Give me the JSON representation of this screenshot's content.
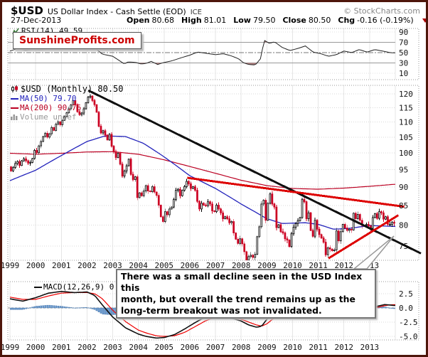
{
  "header": {
    "symbol": "$USD",
    "title": "US Dollar Index - Cash Settle (EOD)",
    "exchange": "ICE",
    "copyright": "© StockCharts.com",
    "date": "27-Dec-2013",
    "open_label": "Open",
    "open": "80.68",
    "high_label": "High",
    "high": "81.01",
    "low_label": "Low",
    "low": "79.50",
    "close_label": "Close",
    "close": "80.50",
    "chg_label": "Chg",
    "chg": "-0.16 (-0.19%)"
  },
  "watermark": "SunshineProfits.com",
  "legends": {
    "rsi": "RSI(14) 49.59",
    "usd": "$USD (Monthly) 80.50",
    "ma50": "MA(50) 79.70",
    "ma200": "MA(200) 90.76",
    "volume": "Volume undef",
    "macd": "MACD(12,26,9) 0.432",
    "macd_suffix": ","
  },
  "annotation": {
    "lines": [
      "There was a small decline seen in the USD Index this",
      "month, but overall the trend remains up as the",
      "long-term breakout was not invalidated."
    ]
  },
  "axes": {
    "price_ticks": [
      120,
      115,
      110,
      105,
      100,
      95,
      90,
      85,
      80,
      75
    ],
    "rsi_ticks": [
      90,
      70,
      50,
      30,
      10
    ],
    "macd_ticks": [
      {
        "label": "2.5",
        "value": 2.5
      },
      {
        "label": "0.0",
        "value": 0.0
      },
      {
        "label": "-2.5",
        "value": -2.5
      },
      {
        "label": "-5.0",
        "value": -5.0
      }
    ],
    "years": [
      "1999",
      "2000",
      "2001",
      "2002",
      "2003",
      "2004",
      "2005",
      "2006",
      "2007",
      "2008",
      "2009",
      "2010",
      "2011",
      "2012",
      "2013"
    ]
  },
  "colors": {
    "frame": "#4e160b",
    "grid": "#e6e6e6",
    "panel_border": "#999999",
    "candle_up_fill": "#ffffff",
    "candle_up_stroke": "#000000",
    "candle_down": "#cc0022",
    "ma50": "#2323bb",
    "ma200": "#bb0022",
    "trend_black": "#111111",
    "trend_red": "#dd0000",
    "rsi_line": "#222222",
    "rsi_fill": "#b08080",
    "macd_line": "#111111",
    "macd_signal": "#ee0000",
    "histogram": "#6b9bd2",
    "histogram_stroke": "#3c6ea5",
    "accent_red": "#cc0000"
  },
  "chart_data": {
    "type": "candlestick",
    "title": "$USD US Dollar Index - Cash Settle (EOD) ICE, Monthly, 1999-2013",
    "timeframe": "monthly",
    "x_range": [
      1999,
      2014
    ],
    "price_scale": "log",
    "price_ylim": [
      73,
      123
    ],
    "last_bar": {
      "date": "27-Dec-2013",
      "open": 80.68,
      "high": 81.01,
      "low": 79.5,
      "close": 80.5,
      "chg": -0.16,
      "chg_pct": -0.19
    },
    "monthly_closes": [
      94.6,
      95.6,
      96.8,
      97.4,
      96.2,
      97.6,
      98.2,
      97.6,
      96.9,
      97.1,
      98.3,
      100.8,
      100.1,
      102.2,
      103.6,
      105.2,
      106.3,
      105.0,
      106.1,
      108.2,
      107.2,
      109.3,
      110.1,
      109.1,
      110.6,
      111.9,
      113.2,
      114.6,
      116.0,
      117.6,
      116.1,
      113.6,
      112.6,
      113.1,
      114.6,
      116.8,
      118.8,
      119.2,
      117.6,
      116.1,
      113.4,
      108.6,
      106.4,
      107.1,
      105.7,
      104.1,
      105.9,
      102.1,
      100.4,
      98.6,
      99.9,
      96.6,
      93.1,
      94.6,
      96.1,
      98.1,
      93.6,
      92.1,
      92.9,
      87.1,
      88.4,
      87.6,
      88.9,
      90.4,
      88.9,
      88.7,
      90.1,
      88.6,
      87.7,
      85.1,
      82.1,
      80.9,
      83.4,
      82.6,
      84.1,
      84.6,
      86.6,
      89.1,
      89.4,
      87.6,
      89.1,
      90.1,
      91.6,
      90.9,
      89.6,
      90.1,
      89.1,
      86.1,
      84.1,
      85.6,
      85.1,
      85.0,
      86.0,
      85.4,
      83.6,
      83.4,
      85.1,
      84.1,
      83.1,
      81.6,
      82.1,
      81.6,
      80.6,
      80.9,
      78.1,
      76.6,
      75.6,
      76.7,
      75.5,
      73.7,
      71.8,
      72.6,
      72.9,
      72.4,
      73.1,
      77.2,
      79.6,
      85.4,
      86.4,
      81.2,
      85.6,
      88.1,
      85.4,
      84.6,
      79.4,
      80.1,
      78.4,
      78.1,
      76.7,
      76.4,
      74.9,
      77.9,
      79.5,
      80.4,
      81.1,
      81.9,
      86.6,
      86.0,
      81.6,
      83.1,
      78.7,
      77.3,
      81.2,
      79.0,
      77.7,
      76.9,
      75.9,
      73.0,
      74.6,
      74.3,
      73.9,
      74.1,
      78.6,
      76.2,
      78.4,
      80.2,
      79.3,
      78.7,
      79.0,
      78.8,
      83.0,
      81.6,
      82.7,
      81.2,
      79.9,
      80.0,
      80.2,
      79.8,
      79.2,
      81.9,
      82.9,
      81.7,
      83.4,
      83.1,
      81.5,
      82.1,
      80.2,
      80.2,
      80.7,
      80.5
    ],
    "first_open": 95.8,
    "ma50_keyframes": [
      [
        1999.0,
        91.8
      ],
      [
        2000.0,
        94.8
      ],
      [
        2001.0,
        99.2
      ],
      [
        2002.0,
        103.6
      ],
      [
        2002.7,
        105.4
      ],
      [
        2003.5,
        105.2
      ],
      [
        2004.2,
        103.0
      ],
      [
        2005.0,
        98.8
      ],
      [
        2006.0,
        93.2
      ],
      [
        2007.0,
        89.6
      ],
      [
        2008.0,
        85.4
      ],
      [
        2009.0,
        81.6
      ],
      [
        2009.6,
        80.4
      ],
      [
        2010.5,
        80.6
      ],
      [
        2011.0,
        80.2
      ],
      [
        2011.6,
        79.0
      ],
      [
        2012.2,
        79.2
      ],
      [
        2013.0,
        79.9
      ],
      [
        2013.95,
        79.7
      ]
    ],
    "ma200_keyframes": [
      [
        1999.0,
        99.9
      ],
      [
        2000.0,
        99.6
      ],
      [
        2001.0,
        99.9
      ],
      [
        2002.0,
        100.3
      ],
      [
        2003.0,
        100.4
      ],
      [
        2004.0,
        99.6
      ],
      [
        2005.0,
        97.9
      ],
      [
        2006.0,
        95.9
      ],
      [
        2007.0,
        93.9
      ],
      [
        2008.0,
        91.9
      ],
      [
        2009.0,
        90.4
      ],
      [
        2010.0,
        89.6
      ],
      [
        2011.0,
        89.4
      ],
      [
        2012.0,
        89.7
      ],
      [
        2013.0,
        90.2
      ],
      [
        2013.95,
        90.76
      ]
    ],
    "rsi_keyframes": [
      [
        1999.0,
        53
      ],
      [
        1999.3,
        58
      ],
      [
        1999.6,
        54
      ],
      [
        1999.9,
        56
      ],
      [
        2000.2,
        55
      ],
      [
        2000.5,
        57
      ],
      [
        2000.8,
        60
      ],
      [
        2001.1,
        58
      ],
      [
        2001.4,
        62
      ],
      [
        2001.7,
        60
      ],
      [
        2002.0,
        62
      ],
      [
        2002.3,
        59
      ],
      [
        2002.6,
        47
      ],
      [
        2003.0,
        43
      ],
      [
        2003.3,
        33
      ],
      [
        2003.45,
        28
      ],
      [
        2003.6,
        32
      ],
      [
        2003.9,
        31
      ],
      [
        2004.1,
        28
      ],
      [
        2004.3,
        29
      ],
      [
        2004.5,
        33
      ],
      [
        2004.75,
        27
      ],
      [
        2005.0,
        31
      ],
      [
        2005.3,
        34
      ],
      [
        2005.6,
        39
      ],
      [
        2006.0,
        45
      ],
      [
        2006.3,
        51
      ],
      [
        2006.6,
        49
      ],
      [
        2007.0,
        46
      ],
      [
        2007.3,
        48
      ],
      [
        2007.6,
        44
      ],
      [
        2007.9,
        38
      ],
      [
        2008.1,
        30
      ],
      [
        2008.3,
        27
      ],
      [
        2008.55,
        26
      ],
      [
        2008.75,
        38
      ],
      [
        2008.9,
        74
      ],
      [
        2009.1,
        68
      ],
      [
        2009.3,
        71
      ],
      [
        2009.6,
        60
      ],
      [
        2009.9,
        54
      ],
      [
        2010.2,
        58
      ],
      [
        2010.5,
        63
      ],
      [
        2010.8,
        51
      ],
      [
        2011.1,
        48
      ],
      [
        2011.4,
        43
      ],
      [
        2011.7,
        46
      ],
      [
        2012.0,
        53
      ],
      [
        2012.3,
        50
      ],
      [
        2012.6,
        56
      ],
      [
        2012.9,
        51
      ],
      [
        2013.2,
        56
      ],
      [
        2013.5,
        53
      ],
      [
        2013.8,
        50
      ],
      [
        2013.95,
        49.59
      ]
    ],
    "rsi_levels": {
      "overbought": 70,
      "midline": 50,
      "oversold": 30
    },
    "macd_keyframes": [
      [
        1999.0,
        1.6
      ],
      [
        1999.5,
        1.2
      ],
      [
        2000.0,
        1.8
      ],
      [
        2000.5,
        2.6
      ],
      [
        2001.0,
        2.9
      ],
      [
        2001.5,
        2.7
      ],
      [
        2002.0,
        2.8
      ],
      [
        2002.3,
        2.2
      ],
      [
        2002.6,
        0.5
      ],
      [
        2003.0,
        -1.6
      ],
      [
        2003.5,
        -3.5
      ],
      [
        2004.0,
        -4.6
      ],
      [
        2004.3,
        -5.0
      ],
      [
        2004.7,
        -5.3
      ],
      [
        2005.0,
        -5.2
      ],
      [
        2005.4,
        -4.7
      ],
      [
        2005.8,
        -3.7
      ],
      [
        2006.2,
        -2.6
      ],
      [
        2006.6,
        -1.6
      ],
      [
        2007.0,
        -1.3
      ],
      [
        2007.3,
        -1.5
      ],
      [
        2007.7,
        -1.9
      ],
      [
        2008.0,
        -2.3
      ],
      [
        2008.3,
        -3.0
      ],
      [
        2008.6,
        -3.4
      ],
      [
        2008.8,
        -3.2
      ],
      [
        2009.0,
        -2.0
      ],
      [
        2009.3,
        -0.8
      ],
      [
        2009.6,
        -0.3
      ],
      [
        2010.0,
        -0.9
      ],
      [
        2010.3,
        -1.2
      ],
      [
        2010.6,
        -0.5
      ],
      [
        2011.0,
        -0.3
      ],
      [
        2011.2,
        -0.8
      ],
      [
        2011.5,
        -1.5
      ],
      [
        2011.8,
        -1.2
      ],
      [
        2012.0,
        -0.7
      ],
      [
        2012.3,
        -0.3
      ],
      [
        2012.6,
        0.0
      ],
      [
        2013.0,
        0.1
      ],
      [
        2013.3,
        0.3
      ],
      [
        2013.6,
        0.6
      ],
      [
        2013.8,
        0.5
      ],
      [
        2013.95,
        0.432
      ]
    ],
    "macd_signal_keyframes": [
      [
        1999.0,
        1.9
      ],
      [
        1999.5,
        1.5
      ],
      [
        2000.0,
        1.5
      ],
      [
        2000.5,
        2.1
      ],
      [
        2001.0,
        2.6
      ],
      [
        2001.5,
        2.7
      ],
      [
        2002.0,
        2.7
      ],
      [
        2002.3,
        2.5
      ],
      [
        2002.6,
        1.6
      ],
      [
        2003.0,
        -0.4
      ],
      [
        2003.5,
        -2.4
      ],
      [
        2004.0,
        -3.9
      ],
      [
        2004.3,
        -4.4
      ],
      [
        2004.7,
        -4.9
      ],
      [
        2005.0,
        -5.0
      ],
      [
        2005.4,
        -4.9
      ],
      [
        2005.8,
        -4.3
      ],
      [
        2006.2,
        -3.3
      ],
      [
        2006.6,
        -2.3
      ],
      [
        2007.0,
        -1.6
      ],
      [
        2007.3,
        -1.5
      ],
      [
        2007.7,
        -1.7
      ],
      [
        2008.0,
        -2.0
      ],
      [
        2008.3,
        -2.5
      ],
      [
        2008.6,
        -3.0
      ],
      [
        2008.8,
        -3.2
      ],
      [
        2009.0,
        -2.8
      ],
      [
        2009.3,
        -1.7
      ],
      [
        2009.6,
        -0.9
      ],
      [
        2010.0,
        -0.7
      ],
      [
        2010.3,
        -0.9
      ],
      [
        2010.6,
        -0.8
      ],
      [
        2011.0,
        -0.5
      ],
      [
        2011.2,
        -0.6
      ],
      [
        2011.5,
        -1.0
      ],
      [
        2011.8,
        -1.2
      ],
      [
        2012.0,
        -1.1
      ],
      [
        2012.3,
        -0.7
      ],
      [
        2012.6,
        -0.3
      ],
      [
        2013.0,
        -0.1
      ],
      [
        2013.3,
        0.1
      ],
      [
        2013.6,
        0.4
      ],
      [
        2013.8,
        0.55
      ],
      [
        2013.95,
        0.56
      ]
    ],
    "trendlines": [
      {
        "name": "long-term-declining-resistance",
        "color": "#111111",
        "width": 3,
        "from": [
          2002.05,
          121.3
        ],
        "to": [
          2015.0,
          73.3
        ]
      },
      {
        "name": "declining-resistance",
        "color": "#dd0000",
        "width": 3,
        "from": [
          2005.9,
          92.6
        ],
        "to": [
          2014.35,
          84.7
        ]
      },
      {
        "name": "rising-support",
        "color": "#dd0000",
        "width": 3,
        "from": [
          2011.4,
          72.2
        ],
        "to": [
          2014.12,
          82.5
        ]
      }
    ]
  }
}
